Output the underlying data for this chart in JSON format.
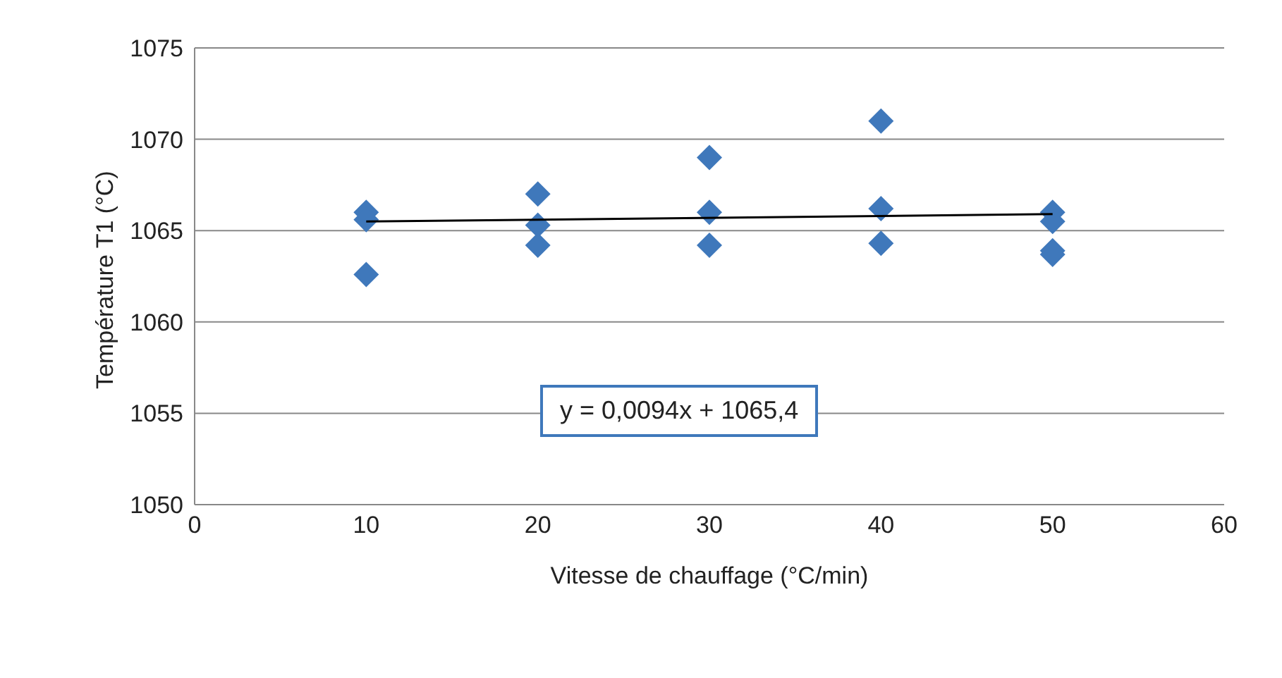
{
  "chart_data": {
    "type": "scatter",
    "xlabel": "Vitesse de chauffage (°C/min)",
    "ylabel": "Température T1 (°C)",
    "xlim": [
      0,
      60
    ],
    "xticks": [
      0,
      10,
      20,
      30,
      40,
      50,
      60
    ],
    "ylim": [
      1050,
      1075
    ],
    "yticks": [
      1050,
      1055,
      1060,
      1065,
      1070,
      1075
    ],
    "grid": "y",
    "series": [
      {
        "color": "#3f78bb",
        "marker": "diamond",
        "x": [
          10,
          10,
          10,
          20,
          20,
          20,
          30,
          30,
          30,
          40,
          40,
          40,
          50,
          50,
          50,
          50
        ],
        "values": [
          1066,
          1065.6,
          1062.6,
          1067,
          1065.3,
          1064.2,
          1069,
          1066,
          1064.2,
          1071,
          1066.2,
          1064.3,
          1066,
          1065.5,
          1063.9,
          1063.7
        ]
      },
      {
        "type": "line",
        "marker": "none",
        "color": "#000000",
        "x": [
          10,
          50
        ],
        "values": [
          1065.5,
          1065.9
        ]
      }
    ],
    "annotations": [
      "y = 0,0094x + 1065,4"
    ]
  }
}
